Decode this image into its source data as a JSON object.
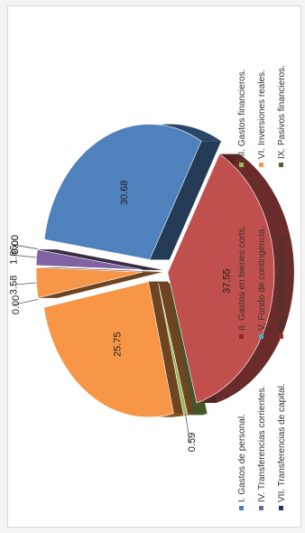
{
  "chart_data": {
    "type": "pie",
    "variant": "3d-exploded",
    "orientation": "rotated-90-ccw",
    "title": "",
    "categories": [
      "I. Gastos de personal.",
      "II. Gastos en bienes corts.",
      "III. Gastos financieros.",
      "IV. Transferencias corrientes.",
      "V, Fondo de contingencia.",
      "VI. Inversiones reales.",
      "VII. Transferencias de capital.",
      "VIII. Activos financieros.",
      "IX. Pasivos financieros."
    ],
    "values": [
      30.68,
      37.55,
      0.59,
      25.75,
      0.0,
      3.58,
      1.86,
      0.0,
      0.0
    ],
    "value_labels": [
      "30.68",
      "37.55",
      "0.59",
      "25.75",
      "0.00",
      "3.58",
      "1.86",
      "0.00",
      "0.00"
    ],
    "colors": [
      "#4f81bd",
      "#c0504d",
      "#9bbb59",
      "#f79646",
      "#4bacc6",
      "#f79646",
      "#8064a2",
      "#a02b2b",
      "#1f6b3a"
    ],
    "legend_colors": [
      "#4f81bd",
      "#8b2a2a",
      "#9bbb59",
      "#8064a2",
      "#4bacc6",
      "#f79646",
      "#1f3864",
      "#a02b2b",
      "#4f6228"
    ],
    "legend_position": "bottom"
  }
}
